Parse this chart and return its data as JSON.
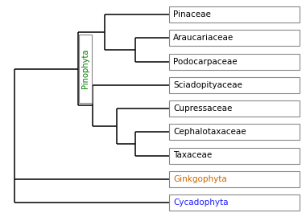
{
  "taxa": [
    "Pinaceae",
    "Araucariaceae",
    "Podocarpaceae",
    "Sciadopityaceae",
    "Cupressaceae",
    "Cephalotaxaceae",
    "Taxaceae",
    "Ginkgophyta",
    "Cycadophyta"
  ],
  "taxa_colors": [
    "#000000",
    "#000000",
    "#000000",
    "#000000",
    "#000000",
    "#000000",
    "#000000",
    "#cc6600",
    "#1a1aff"
  ],
  "pinophyta_text_color": "#008000",
  "line_color": "#000000",
  "background_color": "#ffffff",
  "figsize": [
    3.8,
    2.7
  ],
  "dpi": 100
}
